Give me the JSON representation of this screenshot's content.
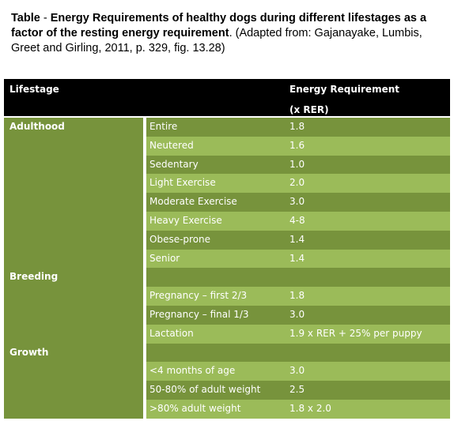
{
  "caption": {
    "bold_prefix": "Table",
    "dash": " - ",
    "bold_title": "Energy Requirements of healthy dogs during different lifestages as a factor of the resting energy requirement",
    "source": ". (Adapted from: Gajanayake, Lumbis, Greet and Girling, 2011, p. 329, fig. 13.28)"
  },
  "table": {
    "header": {
      "lifestage": "Lifestage",
      "requirement_line1": "Energy Requirement",
      "requirement_line2": "(x RER)"
    },
    "groups": [
      {
        "name": "Adulthood",
        "rows": [
          {
            "stage": "Entire",
            "value": "1.8"
          },
          {
            "stage": "Neutered",
            "value": "1.6"
          },
          {
            "stage": "Sedentary",
            "value": "1.0"
          },
          {
            "stage": "Light Exercise",
            "value": "2.0"
          },
          {
            "stage": "Moderate Exercise",
            "value": "3.0"
          },
          {
            "stage": "Heavy Exercise",
            "value": "4-8"
          },
          {
            "stage": "Obese-prone",
            "value": "1.4"
          },
          {
            "stage": "Senior",
            "value": "1.4"
          }
        ]
      },
      {
        "name": "Breeding",
        "rows": [
          {
            "stage": "",
            "value": ""
          },
          {
            "stage": "Pregnancy – first 2/3",
            "value": "1.8"
          },
          {
            "stage": "Pregnancy – final 1/3",
            "value": "3.0"
          },
          {
            "stage": "Lactation",
            "value": "1.9 x RER + 25% per puppy"
          }
        ]
      },
      {
        "name": "Growth",
        "rows": [
          {
            "stage": "",
            "value": ""
          },
          {
            "stage": "<4 months of age",
            "value": "3.0"
          },
          {
            "stage": "50-80% of adult weight",
            "value": "2.5"
          },
          {
            "stage": ">80% adult weight",
            "value": "1.8 x 2.0"
          }
        ]
      }
    ]
  },
  "colors": {
    "header_bg": "#000000",
    "dark_green": "#77933c",
    "light_green": "#9bbb59",
    "text_light": "#ffffff"
  }
}
